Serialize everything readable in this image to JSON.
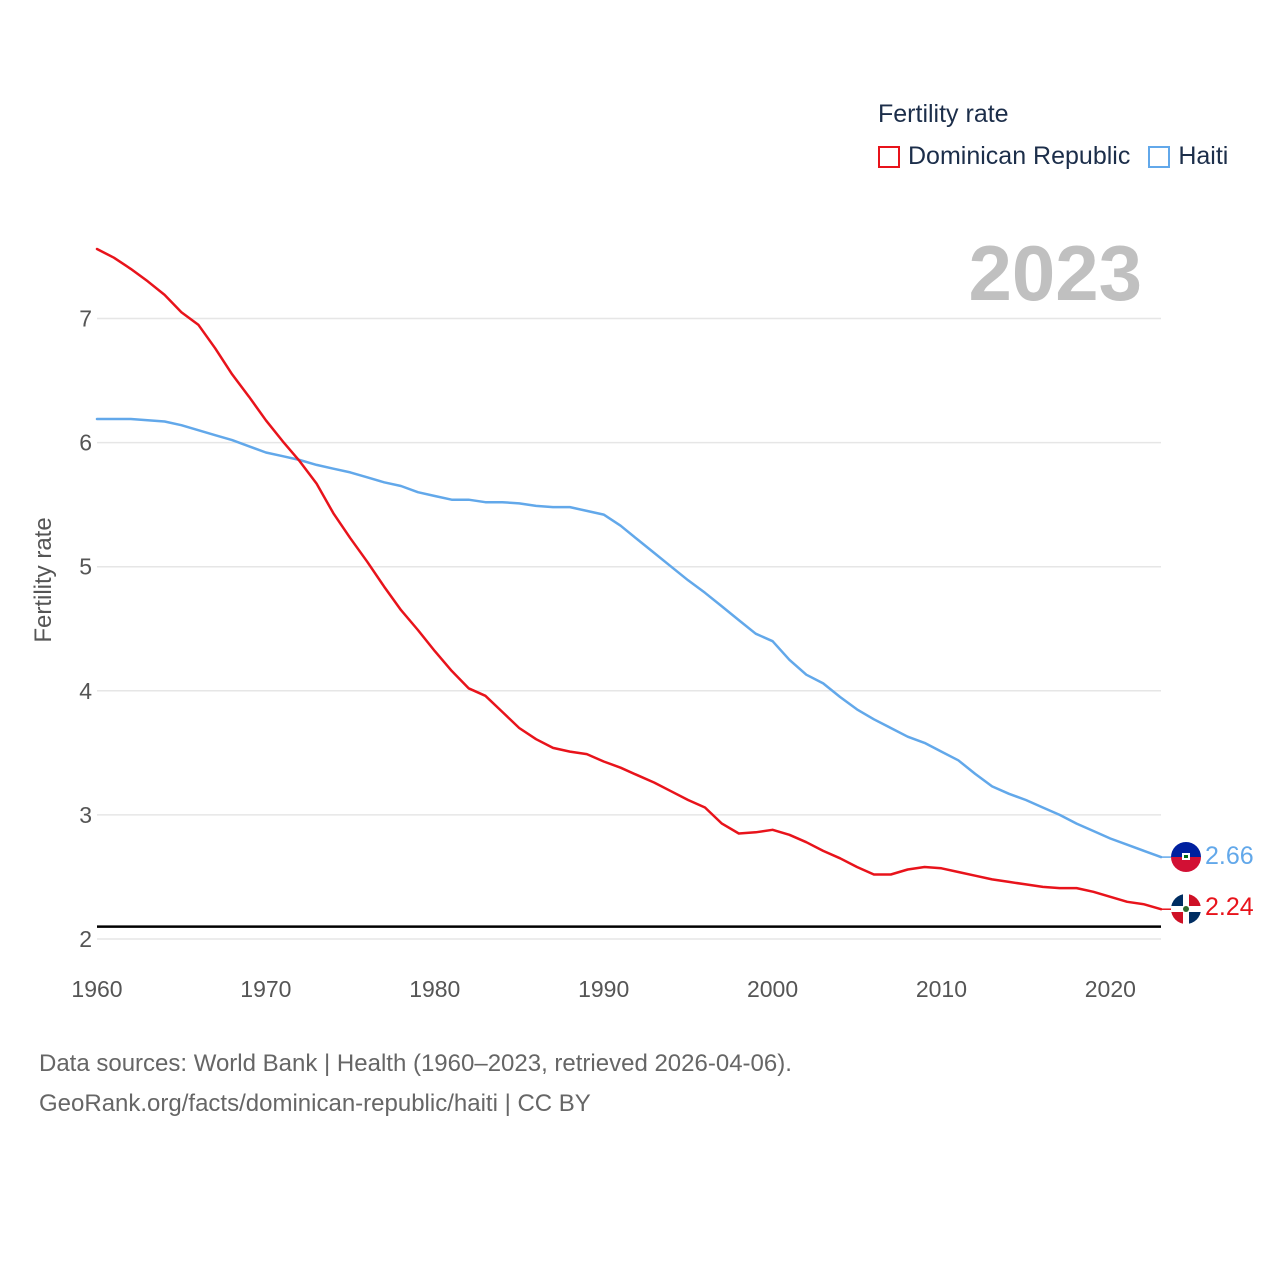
{
  "legend": {
    "title": "Fertility rate",
    "items": [
      {
        "label": "Dominican Republic",
        "color": "#e8131b"
      },
      {
        "label": "Haiti",
        "color": "#62a8ea"
      }
    ]
  },
  "year_label": "2023",
  "source": {
    "line1": "Data sources: World Bank | Health (1960–2023, retrieved 2026-04-06).",
    "line2": "GeoRank.org/facts/dominican-republic/haiti | CC BY"
  },
  "colors": {
    "dominican_republic": "#e8131b",
    "haiti": "#62a8ea",
    "reference_line": "#000000",
    "grid": "#e6e6e6",
    "year": "#c0c0c0"
  },
  "icons": [
    "haiti-flag-icon",
    "dominican-republic-flag-icon"
  ],
  "chart_data": {
    "type": "line",
    "title": "Fertility rate",
    "xlabel": "",
    "ylabel": "Fertility rate",
    "xlim": [
      1960,
      2023
    ],
    "ylim": [
      2,
      7.6
    ],
    "xticks": [
      1960,
      1970,
      1980,
      1990,
      2000,
      2010,
      2020
    ],
    "yticks": [
      2,
      3,
      4,
      5,
      6,
      7
    ],
    "reference_line": 2.1,
    "x": [
      1960,
      1961,
      1962,
      1963,
      1964,
      1965,
      1966,
      1967,
      1968,
      1969,
      1970,
      1971,
      1972,
      1973,
      1974,
      1975,
      1976,
      1977,
      1978,
      1979,
      1980,
      1981,
      1982,
      1983,
      1984,
      1985,
      1986,
      1987,
      1988,
      1989,
      1990,
      1991,
      1992,
      1993,
      1994,
      1995,
      1996,
      1997,
      1998,
      1999,
      2000,
      2001,
      2002,
      2003,
      2004,
      2005,
      2006,
      2007,
      2008,
      2009,
      2010,
      2011,
      2012,
      2013,
      2014,
      2015,
      2016,
      2017,
      2018,
      2019,
      2020,
      2021,
      2022,
      2023
    ],
    "series": [
      {
        "name": "Dominican Republic",
        "color": "#e8131b",
        "end_label": "2.24",
        "values": [
          7.56,
          7.49,
          7.4,
          7.3,
          7.19,
          7.05,
          6.95,
          6.76,
          6.55,
          6.37,
          6.18,
          6.01,
          5.85,
          5.67,
          5.43,
          5.23,
          5.04,
          4.84,
          4.65,
          4.49,
          4.32,
          4.16,
          4.02,
          3.96,
          3.83,
          3.7,
          3.61,
          3.54,
          3.51,
          3.49,
          3.43,
          3.38,
          3.32,
          3.26,
          3.19,
          3.12,
          3.06,
          2.93,
          2.85,
          2.86,
          2.88,
          2.84,
          2.78,
          2.71,
          2.65,
          2.58,
          2.52,
          2.52,
          2.56,
          2.58,
          2.57,
          2.54,
          2.51,
          2.48,
          2.46,
          2.44,
          2.42,
          2.41,
          2.41,
          2.38,
          2.34,
          2.3,
          2.28,
          2.24
        ]
      },
      {
        "name": "Haiti",
        "color": "#62a8ea",
        "end_label": "2.66",
        "values": [
          6.19,
          6.19,
          6.19,
          6.18,
          6.17,
          6.14,
          6.1,
          6.06,
          6.02,
          5.97,
          5.92,
          5.89,
          5.86,
          5.82,
          5.79,
          5.76,
          5.72,
          5.68,
          5.65,
          5.6,
          5.57,
          5.54,
          5.54,
          5.52,
          5.52,
          5.51,
          5.49,
          5.48,
          5.48,
          5.45,
          5.42,
          5.33,
          5.22,
          5.11,
          5.0,
          4.89,
          4.79,
          4.68,
          4.57,
          4.46,
          4.4,
          4.25,
          4.13,
          4.06,
          3.95,
          3.85,
          3.77,
          3.7,
          3.63,
          3.58,
          3.51,
          3.44,
          3.33,
          3.23,
          3.17,
          3.12,
          3.06,
          3.0,
          2.93,
          2.87,
          2.81,
          2.76,
          2.71,
          2.66
        ]
      }
    ]
  }
}
